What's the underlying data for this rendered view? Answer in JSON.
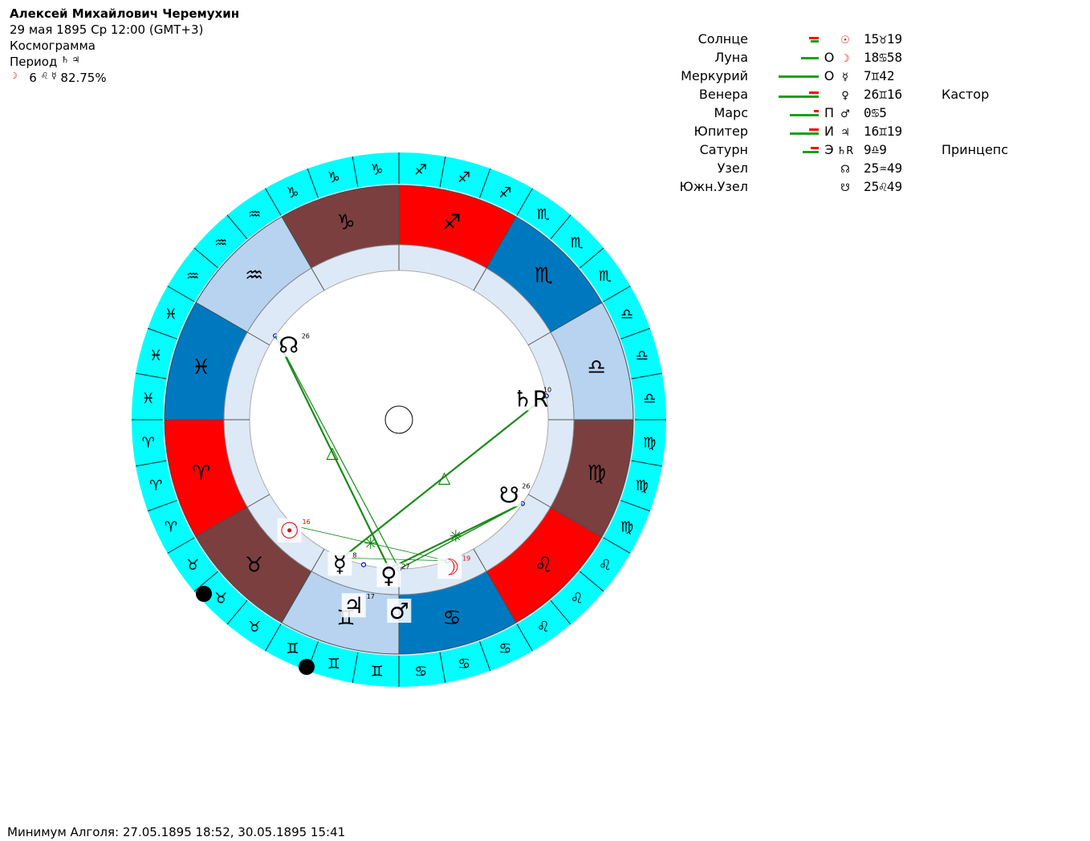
{
  "header": {
    "name": "Алексей Михайлович Черемухин",
    "date_line": "29 мая 1895  Ср  12:00 (GMT+3)",
    "chart_type": "Космограмма",
    "period_label": "Период",
    "period_glyphs": "♄ ♃",
    "moon_glyph": "☽",
    "moon_line": "6",
    "moon_mid_glyphs": "♌ ☿",
    "moon_percent": "82.75%"
  },
  "planets": [
    {
      "name": "Солнце",
      "letter": "",
      "symbol": "☉",
      "symbol_color": "#e00000",
      "position": "15♉19",
      "star": "",
      "bars": {
        "green": 10,
        "red": 12
      }
    },
    {
      "name": "Луна",
      "letter": "O",
      "symbol": "☽",
      "symbol_color": "#e00000",
      "position": "18♋58",
      "star": "",
      "bars": {
        "green": 22,
        "red": 0
      }
    },
    {
      "name": "Меркурий",
      "letter": "O",
      "symbol": "☿",
      "symbol_color": "#000000",
      "position": "7♊42",
      "star": "",
      "bars": {
        "green": 50,
        "red": 0
      }
    },
    {
      "name": "Венера",
      "letter": "",
      "symbol": "♀",
      "symbol_color": "#000000",
      "position": "26♊16",
      "star": "Кастор",
      "bars": {
        "green": 50,
        "red": 12
      }
    },
    {
      "name": "Марс",
      "letter": "П",
      "symbol": "♂",
      "symbol_color": "#000000",
      "position": "0♋5",
      "star": "",
      "bars": {
        "green": 36,
        "red": 6
      }
    },
    {
      "name": "Юпитер",
      "letter": "И",
      "symbol": "♃",
      "symbol_color": "#000000",
      "position": "16♊19",
      "star": "",
      "bars": {
        "green": 36,
        "red": 12
      }
    },
    {
      "name": "Сатурн",
      "letter": "Э",
      "symbol": "♄R",
      "symbol_color": "#000000",
      "position": "9♎9",
      "star": "Принцепс",
      "bars": {
        "green": 20,
        "red": 10
      }
    },
    {
      "name": "Узел",
      "letter": "",
      "symbol": "☊",
      "symbol_color": "#000000",
      "position": "25♒49",
      "star": "",
      "bars": {
        "green": 0,
        "red": 0
      }
    },
    {
      "name": "Южн.Узел",
      "letter": "",
      "symbol": "☋",
      "symbol_color": "#000000",
      "position": "25♌49",
      "star": "",
      "bars": {
        "green": 0,
        "red": 0
      }
    }
  ],
  "wheel": {
    "signs": [
      {
        "glyph": "♈",
        "color": "#ff0000"
      },
      {
        "glyph": "♉",
        "color": "#7b3f3f"
      },
      {
        "glyph": "♊",
        "color": "#b8d3f0"
      },
      {
        "glyph": "♋",
        "color": "#0078c0"
      },
      {
        "glyph": "♌",
        "color": "#ff0000"
      },
      {
        "glyph": "♍",
        "color": "#7b3f3f"
      },
      {
        "glyph": "♎",
        "color": "#b8d3f0"
      },
      {
        "glyph": "♏",
        "color": "#0078c0"
      },
      {
        "glyph": "♐",
        "color": "#ff0000"
      },
      {
        "glyph": "♑",
        "color": "#7b3f3f"
      },
      {
        "glyph": "♒",
        "color": "#b8d3f0"
      },
      {
        "glyph": "♓",
        "color": "#0078c0"
      }
    ],
    "outer_ring_color": "#00ffff",
    "inner_ring_color": "#dde9f6",
    "planet_marks": [
      {
        "glyph": "☉",
        "lon": 45.3,
        "deg": "16",
        "color": "#e00000"
      },
      {
        "glyph": "☽",
        "lon": 108.97,
        "deg": "19",
        "color": "#e00000"
      },
      {
        "glyph": "☿",
        "lon": 67.7,
        "deg": "8",
        "color": "#000000"
      },
      {
        "glyph": "♀",
        "lon": 86.27,
        "deg": "27",
        "color": "#000000"
      },
      {
        "glyph": "♂",
        "lon": 90.08,
        "deg": "",
        "color": "#000000"
      },
      {
        "glyph": "♃",
        "lon": 76.32,
        "deg": "17",
        "color": "#000000"
      },
      {
        "glyph": "♄R",
        "lon": 189.15,
        "deg": "10",
        "color": "#000000"
      },
      {
        "glyph": "☊",
        "lon": 325.8,
        "deg": "26",
        "color": "#000000"
      },
      {
        "glyph": "☋",
        "lon": 145.8,
        "deg": "26",
        "color": "#000000"
      }
    ],
    "aspect_marks": [
      {
        "glyph": "△",
        "color": "#008000"
      },
      {
        "glyph": "△",
        "color": "#008000"
      },
      {
        "glyph": "✳",
        "color": "#008000"
      },
      {
        "glyph": "✳",
        "color": "#008000"
      }
    ]
  },
  "footer": {
    "algol_text": "Минимум Алголя: 27.05.1895 18:52,  30.05.1895 15:41"
  }
}
